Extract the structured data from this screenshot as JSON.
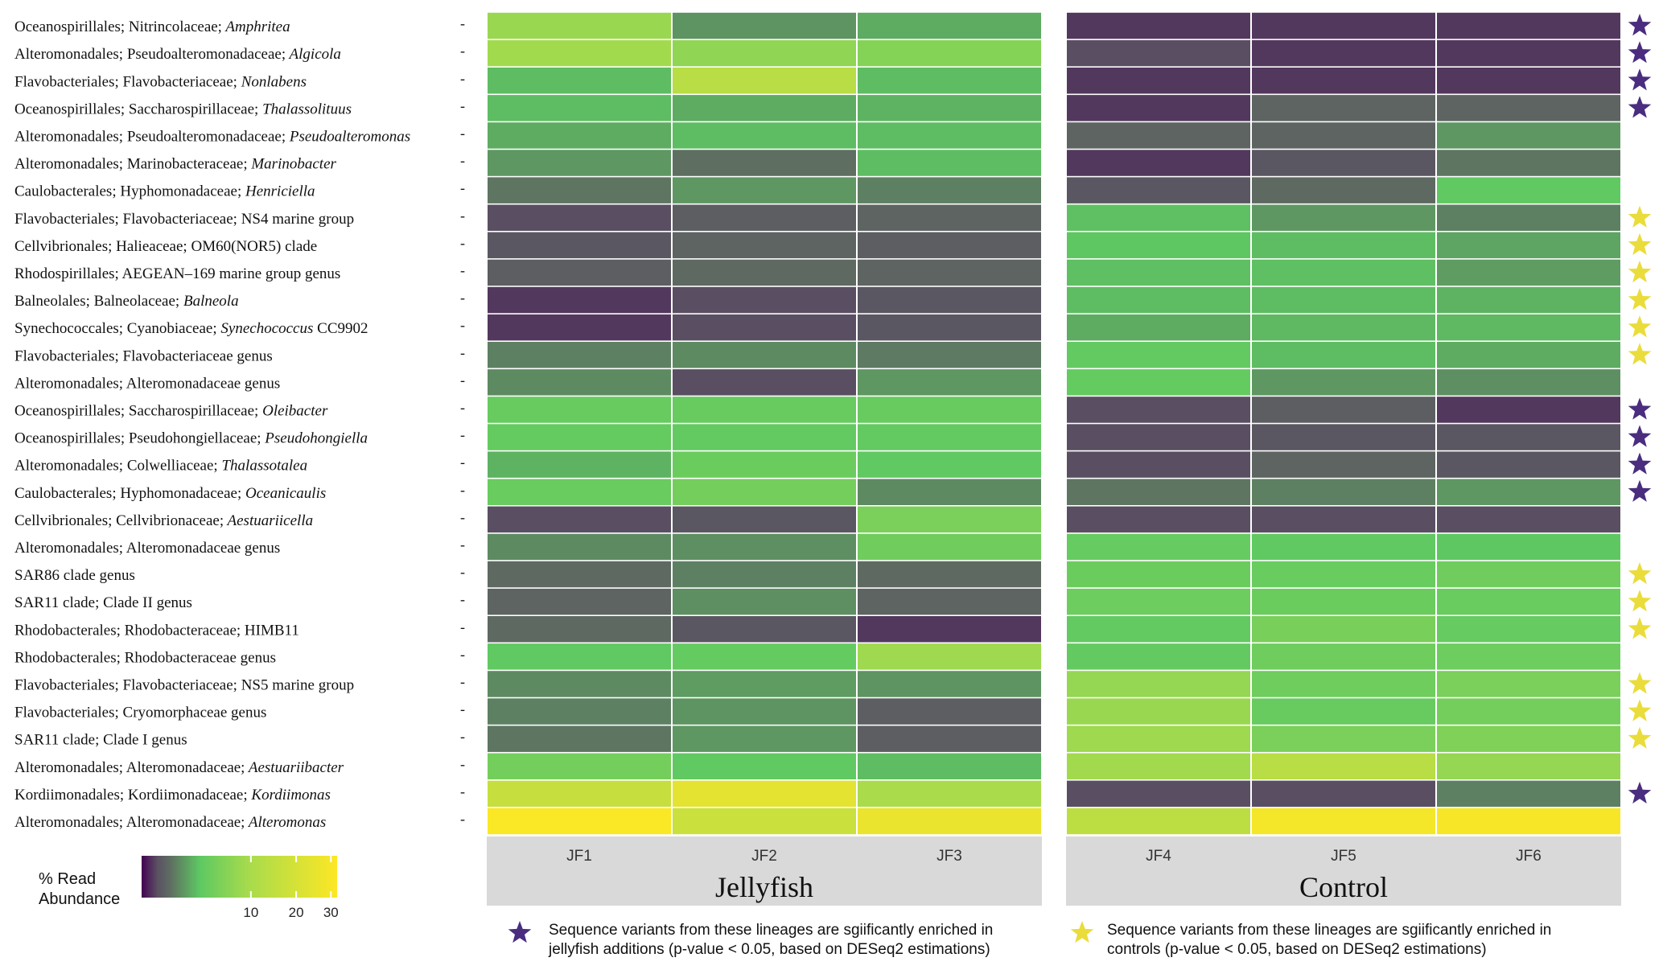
{
  "chart_data": {
    "type": "heatmap",
    "title": "",
    "color_scale": {
      "label_line1": "% Read",
      "label_line2": "Abundance",
      "ticks": [
        "10",
        "20",
        "30"
      ],
      "tick_values": [
        10,
        20,
        30
      ],
      "max": 32,
      "colors": [
        "#440154",
        "#5a5062",
        "#5e6a62",
        "#5ec962",
        "#a8db4c",
        "#fde725"
      ]
    },
    "rows": [
      {
        "order": "Oceanospirillales; Nitrincolaceae;",
        "genus": "Amphritea",
        "genus_italic": true,
        "suffix": "",
        "values": [
          8,
          1.4,
          2.0,
          0.1,
          0.1,
          0.1
        ],
        "star": "jellyfish"
      },
      {
        "order": "Alteromonadales; Pseudoalteromonadaceae;",
        "genus": "Algicola",
        "genus_italic": true,
        "suffix": "",
        "values": [
          9,
          7,
          6,
          0.2,
          0.1,
          0.1
        ],
        "star": "jellyfish"
      },
      {
        "order": "Flavobacteriales; Flavobacteriaceae;",
        "genus": "Nonlabens",
        "genus_italic": true,
        "suffix": "",
        "values": [
          2.5,
          13,
          2.5,
          0.1,
          0.1,
          0.1
        ],
        "star": "jellyfish"
      },
      {
        "order": "Oceanospirillales; Saccharospirillaceae;",
        "genus": "Thalassolituus",
        "genus_italic": true,
        "suffix": "",
        "values": [
          2.5,
          2.0,
          2.2,
          0.1,
          0.5,
          0.5
        ],
        "star": "jellyfish"
      },
      {
        "order": "Alteromonadales; Pseudoalteromonadaceae;",
        "genus": "Pseudoalteromonas",
        "genus_italic": true,
        "suffix": "",
        "values": [
          2.0,
          2.5,
          2.5,
          0.5,
          0.5,
          1.5
        ],
        "star": ""
      },
      {
        "order": "Alteromonadales; Marinobacteraceae;",
        "genus": "Marinobacter",
        "genus_italic": true,
        "suffix": "",
        "values": [
          1.5,
          0.7,
          2.5,
          0.1,
          0.3,
          0.8
        ],
        "star": ""
      },
      {
        "order": "Caulobacterales; Hyphomonadaceae;",
        "genus": "Henriciella",
        "genus_italic": true,
        "suffix": "",
        "values": [
          0.8,
          1.5,
          1.0,
          0.3,
          0.6,
          3.0
        ],
        "star": ""
      },
      {
        "order": "Flavobacteriales; Flavobacteriaceae;",
        "genus": "",
        "genus_italic": false,
        "suffix": "NS4 marine group",
        "values": [
          0.2,
          0.4,
          0.5,
          2.6,
          1.5,
          1.0
        ],
        "star": "control"
      },
      {
        "order": "Cellvibrionales; Halieaceae;",
        "genus": "",
        "genus_italic": false,
        "suffix": "OM60(NOR5) clade",
        "values": [
          0.3,
          0.5,
          0.4,
          2.8,
          2.5,
          1.8
        ],
        "star": "control"
      },
      {
        "order": "Rhodospirillales;",
        "genus": "",
        "genus_italic": false,
        "suffix": "AEGEAN–169 marine group genus",
        "values": [
          0.4,
          0.6,
          0.5,
          2.6,
          2.6,
          1.6
        ],
        "star": "control"
      },
      {
        "order": "Balneolales; Balneolaceae;",
        "genus": "Balneola",
        "genus_italic": true,
        "suffix": "",
        "values": [
          0.1,
          0.2,
          0.3,
          2.5,
          2.5,
          2.2
        ],
        "star": "control"
      },
      {
        "order": "Synechococcales; Cyanobiaceae;",
        "genus": "Synechococcus",
        "genus_italic": true,
        "suffix": " CC9902",
        "values": [
          0.1,
          0.2,
          0.3,
          2.0,
          2.4,
          2.4
        ],
        "star": "control"
      },
      {
        "order": "Flavobacteriales; Flavobacteriaceae genus",
        "genus": "",
        "genus_italic": false,
        "suffix": "",
        "values": [
          1.0,
          1.2,
          0.9,
          3.2,
          2.5,
          2.0
        ],
        "star": "control"
      },
      {
        "order": "Alteromonadales; Alteromonadaceae genus",
        "genus": "",
        "genus_italic": false,
        "suffix": "",
        "values": [
          1.2,
          0.2,
          1.5,
          3.3,
          1.5,
          1.3
        ],
        "star": ""
      },
      {
        "order": "Oceanospirillales; Saccharospirillaceae;",
        "genus": "Oleibacter",
        "genus_italic": true,
        "suffix": "",
        "values": [
          3.5,
          3.5,
          3.5,
          0.2,
          0.4,
          0.1
        ],
        "star": "jellyfish"
      },
      {
        "order": "Oceanospirillales; Pseudohongiellaceae;",
        "genus": "Pseudohongiella",
        "genus_italic": true,
        "suffix": "",
        "values": [
          3.3,
          3.2,
          3.2,
          0.2,
          0.3,
          0.3
        ],
        "star": "jellyfish"
      },
      {
        "order": "Alteromonadales; Colwelliaceae;",
        "genus": "Thalassotalea",
        "genus_italic": true,
        "suffix": "",
        "values": [
          2.2,
          3.8,
          3.0,
          0.2,
          0.5,
          0.3
        ],
        "star": "jellyfish"
      },
      {
        "order": "Caulobacterales; Hyphomonadaceae;",
        "genus": "Oceanicaulis",
        "genus_italic": true,
        "suffix": "",
        "values": [
          3.6,
          4.5,
          1.2,
          0.8,
          1.0,
          1.5
        ],
        "star": "jellyfish"
      },
      {
        "order": "Cellvibrionales; Cellvibrionaceae;",
        "genus": "Aestuariicella",
        "genus_italic": true,
        "suffix": "",
        "values": [
          0.2,
          0.3,
          5.0,
          0.2,
          0.2,
          0.2
        ],
        "star": ""
      },
      {
        "order": "Alteromonadales; Alteromonadaceae genus",
        "genus": "",
        "genus_italic": false,
        "suffix": "",
        "values": [
          1.2,
          1.3,
          4.2,
          3.4,
          3.0,
          2.8
        ],
        "star": ""
      },
      {
        "order": "SAR86 clade genus",
        "genus": "",
        "genus_italic": false,
        "suffix": "",
        "values": [
          0.6,
          1.0,
          0.6,
          3.8,
          3.6,
          4.2
        ],
        "star": "control"
      },
      {
        "order": "SAR11 clade; Clade II genus",
        "genus": "",
        "genus_italic": false,
        "suffix": "",
        "values": [
          0.5,
          1.3,
          0.5,
          3.9,
          3.8,
          3.6
        ],
        "star": "control"
      },
      {
        "order": "Rhodobacterales; Rhodobacteraceae;",
        "genus": "",
        "genus_italic": false,
        "suffix": "HIMB11",
        "values": [
          0.6,
          0.3,
          0.1,
          3.2,
          4.8,
          3.4
        ],
        "star": "control"
      },
      {
        "order": "Rhodobacterales; Rhodobacteraceae genus",
        "genus": "",
        "genus_italic": false,
        "suffix": "",
        "values": [
          3.0,
          3.3,
          8.5,
          3.2,
          4.0,
          3.9
        ],
        "star": ""
      },
      {
        "order": "Flavobacteriales; Flavobacteriaceae;",
        "genus": "",
        "genus_italic": false,
        "suffix": "NS5 marine group",
        "values": [
          1.2,
          1.6,
          1.4,
          7.5,
          4.0,
          5.0
        ],
        "star": "control"
      },
      {
        "order": "Flavobacteriales; Cryomorphaceae genus",
        "genus": "",
        "genus_italic": false,
        "suffix": "",
        "values": [
          1.0,
          1.4,
          0.4,
          8.0,
          3.5,
          4.5
        ],
        "star": "control"
      },
      {
        "order": "SAR11 clade; Clade I genus",
        "genus": "",
        "genus_italic": false,
        "suffix": "",
        "values": [
          0.8,
          1.5,
          0.4,
          8.5,
          5.0,
          5.5
        ],
        "star": "control"
      },
      {
        "order": "Alteromonadales; Alteromonadaceae;",
        "genus": "Aestuariibacter",
        "genus_italic": true,
        "suffix": "",
        "values": [
          4.5,
          3.0,
          2.5,
          9.0,
          13,
          7.5
        ],
        "star": ""
      },
      {
        "order": "Kordiimonadales; Kordiimonadaceae;",
        "genus": "Kordiimonas",
        "genus_italic": true,
        "suffix": "",
        "values": [
          16,
          24,
          10,
          0.2,
          0.2,
          1.0
        ],
        "star": "jellyfish"
      },
      {
        "order": "Alteromonadales; Alteromonadaceae;",
        "genus": "Alteromonas",
        "genus_italic": true,
        "suffix": "",
        "values": [
          31,
          17,
          26,
          14,
          29,
          30
        ],
        "star": ""
      }
    ],
    "groups": [
      {
        "label": "Jellyfish",
        "columns": [
          "JF1",
          "JF2",
          "JF3"
        ]
      },
      {
        "label": "Control",
        "columns": [
          "JF4",
          "JF5",
          "JF6"
        ]
      }
    ],
    "tick_mark": "-",
    "star_colors": {
      "jellyfish": "#4a2d7f",
      "control": "#eadc3a"
    }
  },
  "legend": {
    "jellyfish_note_line1": "Sequence variants from these lineages are sgiificantly enriched in",
    "jellyfish_note_line2": "jellyfish additions (p-value < 0.05, based on DESeq2 estimations)",
    "control_note_line1": "Sequence variants from these lineages are sgiificantly enriched in",
    "control_note_line2": "controls (p-value < 0.05, based on DESeq2 estimations)"
  }
}
